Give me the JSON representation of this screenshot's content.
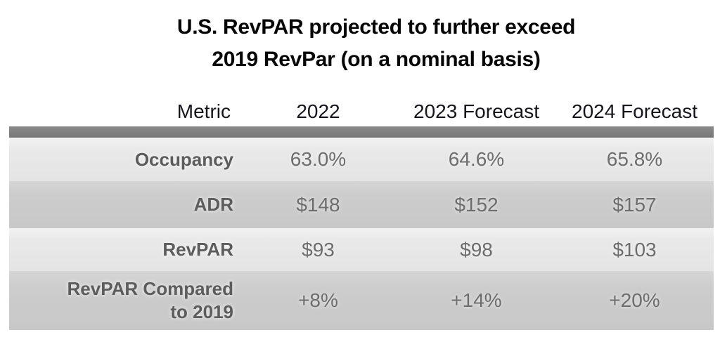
{
  "title": {
    "line1": "U.S. RevPAR projected to further exceed",
    "line2": "2019 RevPar (on a nominal basis)"
  },
  "chart_data": {
    "type": "table",
    "title": "U.S. RevPAR projected to further exceed 2019 RevPar (on a nominal basis)",
    "columns": [
      "Metric",
      "2022",
      "2023 Forecast",
      "2024 Forecast"
    ],
    "rows": [
      {
        "metric": "Occupancy",
        "values": [
          "63.0%",
          "64.6%",
          "65.8%"
        ]
      },
      {
        "metric": "ADR",
        "values": [
          "$148",
          "$152",
          "$157"
        ]
      },
      {
        "metric": "RevPAR",
        "values": [
          "$93",
          "$98",
          "$103"
        ]
      },
      {
        "metric": "RevPAR Compared to 2019",
        "values": [
          "+8%",
          "+14%",
          "+20%"
        ]
      }
    ]
  },
  "colors": {
    "title_text": "#050505",
    "header_text": "#15151e",
    "divider_bar": "#7f7f7f",
    "row_light": "#e7e7e7",
    "row_dark": "#cccccc",
    "label_text": "#5c5c5c",
    "value_text": "#6d6d6d",
    "background": "#ffffff"
  }
}
